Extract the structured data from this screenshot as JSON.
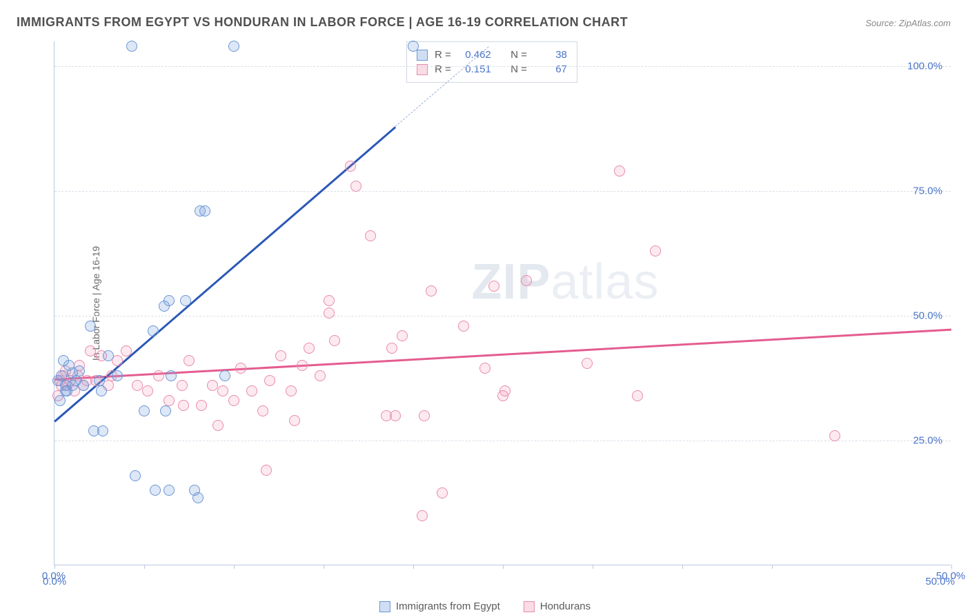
{
  "title": "IMMIGRANTS FROM EGYPT VS HONDURAN IN LABOR FORCE | AGE 16-19 CORRELATION CHART",
  "source": "Source: ZipAtlas.com",
  "watermark_bold": "ZIP",
  "watermark_light": "atlas",
  "yaxis_label": "In Labor Force | Age 16-19",
  "chart": {
    "type": "scatter",
    "xlim": [
      0,
      50
    ],
    "ylim": [
      0,
      105
    ],
    "x_ticks": [
      0,
      5,
      10,
      15,
      20,
      25,
      30,
      35,
      40,
      50
    ],
    "x_tick_labels": {
      "0": "0.0%",
      "50": "50.0%"
    },
    "y_gridlines": [
      25,
      50,
      75,
      100
    ],
    "y_labels": {
      "25": "25.0%",
      "50": "50.0%",
      "75": "75.0%",
      "100": "100.0%"
    },
    "background_color": "#ffffff",
    "grid_color": "#d8dee8",
    "axis_color": "#b9c8e0",
    "label_color": "#4a74c9",
    "title_color": "#505050",
    "title_fontsize": 18,
    "axis_fontsize": 15,
    "marker_size": 16,
    "series": [
      {
        "name": "Immigrants from Egypt",
        "color_fill": "rgba(120,160,220,0.25)",
        "color_stroke": "#6a95d6",
        "trend_color": "#2b58b6",
        "r": "0.462",
        "n": "38",
        "trend": {
          "x1": 0,
          "y1": 29,
          "x2": 19,
          "y2": 88,
          "dash_to_x": 24.2,
          "dash_to_y": 104
        },
        "points": [
          [
            0.2,
            37
          ],
          [
            0.4,
            38
          ],
          [
            0.6,
            36
          ],
          [
            0.8,
            40
          ],
          [
            0.5,
            41
          ],
          [
            0.7,
            35
          ],
          [
            1.0,
            38.5
          ],
          [
            1.2,
            37
          ],
          [
            1.0,
            36
          ],
          [
            1.4,
            39
          ],
          [
            1.6,
            36
          ],
          [
            0.3,
            33
          ],
          [
            0.6,
            35
          ],
          [
            2.0,
            48
          ],
          [
            2.5,
            37
          ],
          [
            2.6,
            35
          ],
          [
            2.2,
            27
          ],
          [
            3.0,
            42
          ],
          [
            3.5,
            38
          ],
          [
            4.3,
            104
          ],
          [
            10.0,
            104
          ],
          [
            20.0,
            104
          ],
          [
            8.1,
            71
          ],
          [
            8.4,
            71
          ],
          [
            5.5,
            47
          ],
          [
            6.1,
            52
          ],
          [
            6.4,
            53
          ],
          [
            7.3,
            53
          ],
          [
            6.5,
            38
          ],
          [
            9.5,
            38
          ],
          [
            5.0,
            31
          ],
          [
            6.2,
            31
          ],
          [
            4.5,
            18
          ],
          [
            2.7,
            27
          ],
          [
            5.6,
            15
          ],
          [
            6.4,
            15
          ],
          [
            7.8,
            15
          ],
          [
            8.0,
            13.5
          ]
        ]
      },
      {
        "name": "Hondurans",
        "color_fill": "rgba(240,140,170,0.18)",
        "color_stroke": "#e88aac",
        "trend_color": "#e45c8f",
        "r": "0.151",
        "n": "67",
        "trend": {
          "x1": 0,
          "y1": 37.5,
          "x2": 50,
          "y2": 47.5
        },
        "points": [
          [
            0.3,
            37
          ],
          [
            0.5,
            38
          ],
          [
            0.7,
            36
          ],
          [
            0.9,
            37
          ],
          [
            1.1,
            35
          ],
          [
            1.3,
            38
          ],
          [
            1.4,
            40
          ],
          [
            1.6,
            36
          ],
          [
            1.8,
            37
          ],
          [
            0.2,
            34
          ],
          [
            2.0,
            43
          ],
          [
            2.3,
            37
          ],
          [
            2.6,
            42
          ],
          [
            3.0,
            36
          ],
          [
            3.2,
            38
          ],
          [
            3.5,
            41
          ],
          [
            4.0,
            43
          ],
          [
            4.6,
            36
          ],
          [
            5.2,
            35
          ],
          [
            5.8,
            38
          ],
          [
            6.4,
            33
          ],
          [
            7.2,
            32
          ],
          [
            7.1,
            36
          ],
          [
            7.5,
            41
          ],
          [
            8.2,
            32
          ],
          [
            8.8,
            36
          ],
          [
            9.1,
            28
          ],
          [
            9.4,
            35
          ],
          [
            10.0,
            33
          ],
          [
            10.4,
            39.5
          ],
          [
            11.0,
            35
          ],
          [
            11.6,
            31
          ],
          [
            11.8,
            19
          ],
          [
            12.0,
            37
          ],
          [
            12.6,
            42
          ],
          [
            13.2,
            35
          ],
          [
            13.4,
            29
          ],
          [
            13.8,
            40
          ],
          [
            14.2,
            43.5
          ],
          [
            14.8,
            38
          ],
          [
            15.3,
            50.5
          ],
          [
            15.3,
            53
          ],
          [
            15.6,
            45
          ],
          [
            16.5,
            80
          ],
          [
            16.8,
            76
          ],
          [
            17.6,
            66
          ],
          [
            18.5,
            30
          ],
          [
            18.8,
            43.5
          ],
          [
            19.0,
            30
          ],
          [
            19.4,
            46
          ],
          [
            21.0,
            55
          ],
          [
            20.5,
            10
          ],
          [
            20.6,
            30
          ],
          [
            21.6,
            14.5
          ],
          [
            22.8,
            48
          ],
          [
            24.0,
            39.5
          ],
          [
            24.5,
            56
          ],
          [
            25.0,
            34
          ],
          [
            25.1,
            35
          ],
          [
            26.3,
            57
          ],
          [
            29.7,
            40.5
          ],
          [
            31.5,
            79
          ],
          [
            32.5,
            34
          ],
          [
            33.5,
            63
          ],
          [
            43.5,
            26
          ],
          [
            0.4,
            36
          ],
          [
            0.6,
            39
          ]
        ]
      }
    ]
  },
  "legend": {
    "series_a": "Immigrants from Egypt",
    "series_b": "Hondurans"
  },
  "stats": {
    "r_label": "R =",
    "n_label": "N ="
  }
}
